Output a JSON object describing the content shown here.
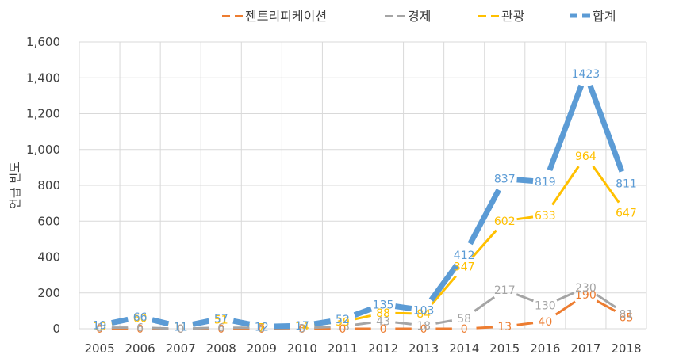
{
  "chart_data": {
    "type": "line",
    "title": "",
    "xlabel": "",
    "ylabel": "언급 빈도",
    "ylim": [
      0,
      1600
    ],
    "yticks": [
      0,
      200,
      400,
      600,
      800,
      1000,
      1200,
      1400,
      1600
    ],
    "ytick_labels": [
      "0",
      "200",
      "400",
      "600",
      "800",
      "1,000",
      "1,200",
      "1,400",
      "1,600"
    ],
    "grid": true,
    "legend_position": "top",
    "categories": [
      "2005",
      "2006",
      "2007",
      "2008",
      "2009",
      "2010",
      "2011",
      "2012",
      "2013",
      "2014",
      "2015",
      "2016",
      "2017",
      "2018"
    ],
    "series": [
      {
        "name": "젠트리피케이션",
        "color": "#ED7D31",
        "width": 3,
        "values": [
          0,
          0,
          0,
          0,
          0,
          0,
          0,
          0,
          0,
          0,
          13,
          40,
          190,
          65
        ]
      },
      {
        "name": "경제",
        "color": "#A5A5A5",
        "width": 3,
        "values": [
          6,
          6,
          0,
          6,
          5,
          3,
          13,
          43,
          18,
          58,
          217,
          130,
          230,
          81
        ]
      },
      {
        "name": "관광",
        "color": "#FFC000",
        "width": 3,
        "values": [
          13,
          60,
          11,
          51,
          7,
          14,
          39,
          88,
          84,
          347,
          602,
          633,
          964,
          647
        ]
      },
      {
        "name": "합계",
        "color": "#5B9BD5",
        "width": 7,
        "values": [
          19,
          66,
          11,
          57,
          12,
          17,
          52,
          135,
          103,
          412,
          837,
          819,
          1423,
          811
        ]
      }
    ]
  }
}
